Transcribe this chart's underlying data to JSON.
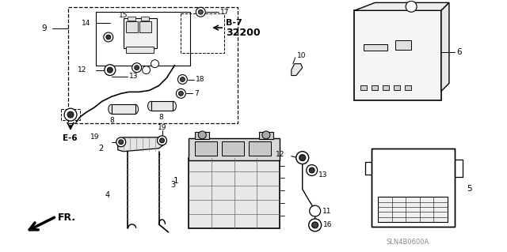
{
  "bg_color": "#ffffff",
  "fig_width": 6.4,
  "fig_height": 3.19,
  "dpi": 100,
  "watermark": "SLN4B0600A",
  "arrow_label": "FR."
}
